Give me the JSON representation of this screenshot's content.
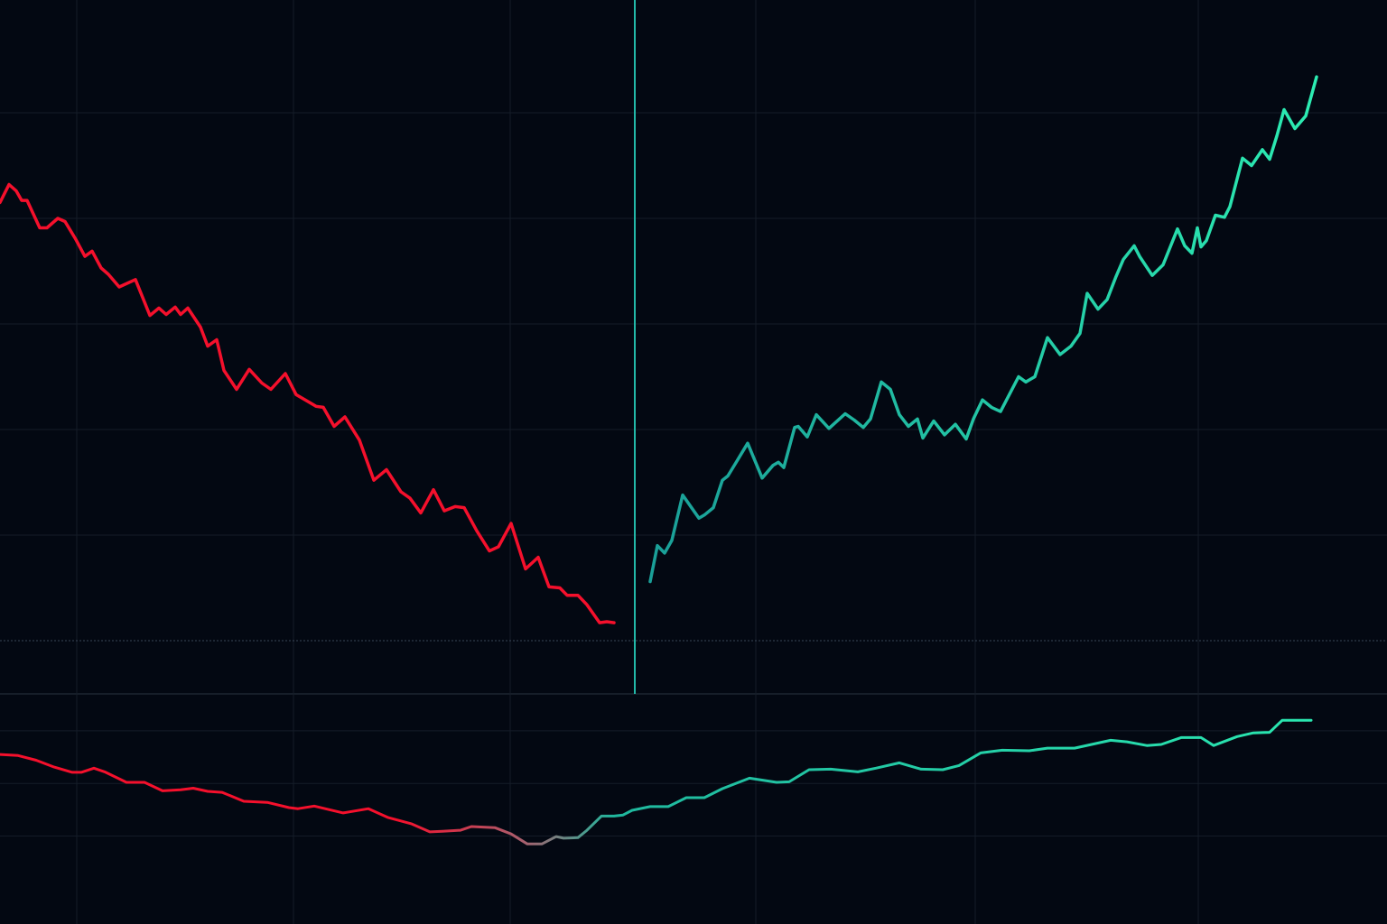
{
  "chart_data": [
    {
      "type": "line",
      "xlim": [
        0,
        153.6
      ],
      "ylim": [
        -5.04,
        60.68
      ],
      "xticks": [
        8.5,
        32.5,
        56.5,
        83.7,
        108,
        132.7
      ],
      "yticks": [
        0,
        10,
        20,
        30,
        40,
        50
      ],
      "grid": true,
      "series": [
        {
          "color": "#f5102c",
          "x": [
            0,
            1,
            1.8,
            2.4,
            3,
            4.4,
            5.2,
            6.4,
            7.2,
            8.4,
            9.4,
            10.2,
            11.2,
            12,
            13.2,
            15,
            16.6,
            17.6,
            18.4,
            19.4,
            20,
            20.8,
            22.2,
            23,
            24,
            24.8,
            26.2,
            27.6,
            29,
            30,
            31.6,
            32.8,
            34,
            35,
            35.8,
            37,
            38.2,
            39.8,
            41.4,
            42.8,
            44.4,
            45.4,
            46.6,
            48,
            49.2,
            50.4,
            51.4,
            52.8,
            54.2,
            55.2,
            56.6,
            58.2,
            59.6,
            60.8,
            62,
            62.8,
            64,
            65,
            66.4,
            67.2,
            68
          ],
          "values": [
            41.5,
            43.2,
            42.6,
            41.7,
            41.7,
            39.1,
            39.1,
            40.0,
            39.7,
            38.0,
            36.4,
            36.9,
            35.3,
            34.7,
            33.5,
            34.2,
            30.8,
            31.5,
            30.9,
            31.6,
            30.9,
            31.5,
            29.7,
            27.9,
            28.5,
            25.6,
            23.8,
            25.7,
            24.4,
            23.8,
            25.3,
            23.3,
            22.7,
            22.2,
            22.1,
            20.3,
            21.2,
            19.0,
            15.2,
            16.2,
            14.1,
            13.5,
            12.1,
            14.3,
            12.3,
            12.7,
            12.6,
            10.4,
            8.5,
            8.9,
            11.1,
            6.8,
            7.9,
            5.1,
            5.0,
            4.3,
            4.3,
            3.4,
            1.7,
            1.8,
            1.7
          ]
        },
        {
          "color": "#2cecb2",
          "gradient": [
            {
              "x": 72,
              "color": "#1a9f98"
            },
            {
              "x": 145.8,
              "color": "#2cecb2"
            }
          ],
          "x": [
            72,
            72.8,
            73.6,
            74.4,
            75.6,
            77.4,
            78,
            79,
            80,
            80.6,
            81.6,
            82.8,
            84.4,
            85.6,
            86.2,
            86.8,
            88,
            88.4,
            89.4,
            90.4,
            91.8,
            93.6,
            94.6,
            95.6,
            96.4,
            97.6,
            98.6,
            99.6,
            100.6,
            101.6,
            102.2,
            103.4,
            104.6,
            105.8,
            107,
            107.8,
            108.8,
            109.8,
            110.8,
            112.8,
            113.6,
            114.6,
            116,
            117.4,
            118.6,
            119.6,
            120.4,
            121.6,
            122.6,
            123.6,
            124.4,
            125.6,
            126.2,
            127.6,
            128.8,
            129.6,
            130.4,
            131.2,
            132,
            132.6,
            133,
            133.6,
            134.6,
            135.6,
            136.2,
            137.6,
            138.6,
            139.8,
            140.6,
            141.4,
            142.2,
            143.4,
            144.6,
            145.8
          ],
          "values": [
            5.6,
            9.0,
            8.3,
            9.5,
            13.8,
            11.6,
            11.9,
            12.6,
            15.2,
            15.6,
            17.0,
            18.7,
            15.4,
            16.6,
            16.9,
            16.4,
            20.2,
            20.3,
            19.3,
            21.4,
            20.1,
            21.5,
            20.9,
            20.2,
            21.0,
            24.5,
            23.8,
            21.4,
            20.3,
            21.0,
            19.2,
            20.8,
            19.5,
            20.5,
            19.1,
            21.0,
            22.8,
            22.1,
            21.7,
            25.0,
            24.5,
            25.0,
            28.7,
            27.1,
            27.9,
            29.1,
            32.9,
            31.4,
            32.3,
            34.5,
            36.1,
            37.4,
            36.4,
            34.6,
            35.6,
            37.3,
            39.0,
            37.4,
            36.7,
            39.1,
            37.3,
            37.9,
            40.3,
            40.1,
            41.1,
            45.7,
            45.0,
            46.5,
            45.6,
            47.8,
            50.3,
            48.5,
            49.7,
            53.4
          ]
        }
      ]
    },
    {
      "type": "line",
      "xlim": [
        0,
        153.6
      ],
      "ylim": [
        -2.67,
        1.7
      ],
      "xticks": [
        8.5,
        32.5,
        56.5,
        83.7,
        108,
        132.7
      ],
      "yticks": [
        -1,
        0,
        1
      ],
      "grid": true,
      "series": [
        {
          "color": "#22c9a8",
          "gradient": [
            {
              "x": 44,
              "color": "#f5102c"
            },
            {
              "x": 58,
              "color": "#a8606e"
            },
            {
              "x": 68,
              "color": "#1fb89e"
            },
            {
              "x": 145.2,
              "color": "#2ae6b0"
            }
          ],
          "x": [
            0,
            2,
            4,
            6,
            8,
            9,
            10.4,
            11.6,
            14,
            16,
            18,
            20,
            21.4,
            23,
            24.6,
            27,
            29.6,
            32,
            33,
            34.8,
            38,
            40.8,
            43,
            45.6,
            47.6,
            49,
            51,
            52.2,
            54.8,
            56.6,
            58.4,
            60,
            61.6,
            62.4,
            64,
            65,
            66.6,
            68,
            69,
            70,
            72,
            74,
            76,
            78,
            80,
            83,
            86,
            87.4,
            89.6,
            92,
            95,
            97,
            99.6,
            102,
            104.4,
            106.2,
            108.6,
            111,
            114,
            116,
            119,
            123,
            124.8,
            127,
            128.6,
            130.8,
            133,
            134.4,
            137,
            138.8,
            140.6,
            142,
            145.2
          ],
          "values": [
            0.55,
            0.53,
            0.44,
            0.31,
            0.21,
            0.21,
            0.29,
            0.22,
            0.02,
            0.02,
            -0.14,
            -0.12,
            -0.09,
            -0.15,
            -0.17,
            -0.34,
            -0.36,
            -0.46,
            -0.48,
            -0.43,
            -0.56,
            -0.48,
            -0.65,
            -0.77,
            -0.92,
            -0.91,
            -0.89,
            -0.82,
            -0.84,
            -0.96,
            -1.15,
            -1.15,
            -1.01,
            -1.04,
            -1.03,
            -0.89,
            -0.62,
            -0.62,
            -0.6,
            -0.51,
            -0.44,
            -0.44,
            -0.27,
            -0.27,
            -0.1,
            0.1,
            0.02,
            0.03,
            0.26,
            0.27,
            0.22,
            0.29,
            0.39,
            0.27,
            0.26,
            0.34,
            0.58,
            0.63,
            0.62,
            0.67,
            0.67,
            0.82,
            0.79,
            0.72,
            0.74,
            0.87,
            0.87,
            0.72,
            0.89,
            0.96,
            0.97,
            1.2,
            1.2
          ]
        }
      ]
    }
  ]
}
